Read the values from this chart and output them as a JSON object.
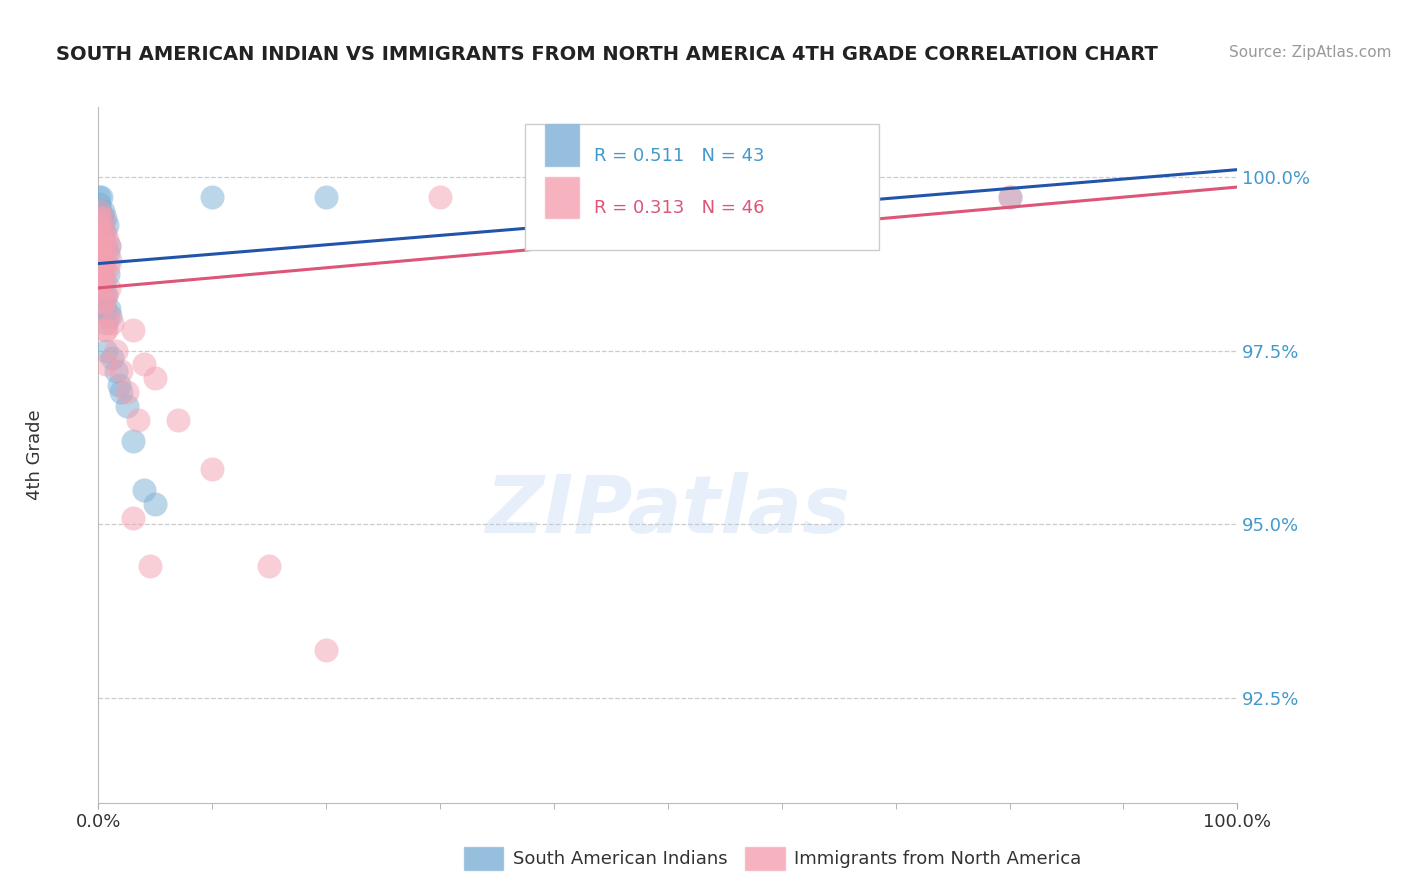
{
  "title": "SOUTH AMERICAN INDIAN VS IMMIGRANTS FROM NORTH AMERICA 4TH GRADE CORRELATION CHART",
  "source_text": "Source: ZipAtlas.com",
  "ylabel": "4th Grade",
  "blue_R": 0.511,
  "blue_N": 43,
  "pink_R": 0.313,
  "pink_N": 46,
  "blue_color": "#7BAFD4",
  "pink_color": "#F4A0B0",
  "blue_line_color": "#2255AA",
  "pink_line_color": "#DD5577",
  "legend_label_blue": "South American Indians",
  "legend_label_pink": "Immigrants from North America",
  "blue_scatter": [
    [
      0.05,
      99.7
    ],
    [
      0.08,
      99.6
    ],
    [
      0.1,
      99.5
    ],
    [
      0.12,
      99.4
    ],
    [
      0.15,
      99.3
    ],
    [
      0.18,
      99.2
    ],
    [
      0.2,
      99.1
    ],
    [
      0.22,
      99.0
    ],
    [
      0.25,
      99.7
    ],
    [
      0.28,
      99.4
    ],
    [
      0.3,
      99.3
    ],
    [
      0.32,
      99.1
    ],
    [
      0.35,
      98.9
    ],
    [
      0.38,
      98.8
    ],
    [
      0.4,
      98.7
    ],
    [
      0.42,
      99.5
    ],
    [
      0.45,
      99.2
    ],
    [
      0.48,
      98.5
    ],
    [
      0.5,
      98.3
    ],
    [
      0.55,
      98.1
    ],
    [
      0.58,
      99.4
    ],
    [
      0.6,
      99.0
    ],
    [
      0.65,
      98.3
    ],
    [
      0.68,
      97.9
    ],
    [
      0.7,
      97.5
    ],
    [
      0.75,
      99.3
    ],
    [
      0.8,
      98.6
    ],
    [
      0.85,
      98.9
    ],
    [
      0.9,
      99.0
    ],
    [
      0.95,
      98.1
    ],
    [
      1.0,
      98.0
    ],
    [
      1.2,
      97.4
    ],
    [
      1.5,
      97.2
    ],
    [
      1.8,
      97.0
    ],
    [
      2.0,
      96.9
    ],
    [
      2.5,
      96.7
    ],
    [
      3.0,
      96.2
    ],
    [
      4.0,
      95.5
    ],
    [
      5.0,
      95.3
    ],
    [
      10.0,
      99.7
    ],
    [
      20.0,
      99.7
    ],
    [
      40.0,
      99.7
    ],
    [
      80.0,
      99.7
    ]
  ],
  "pink_scatter": [
    [
      0.05,
      99.5
    ],
    [
      0.08,
      99.4
    ],
    [
      0.1,
      99.2
    ],
    [
      0.12,
      99.0
    ],
    [
      0.15,
      98.8
    ],
    [
      0.18,
      98.6
    ],
    [
      0.2,
      98.5
    ],
    [
      0.25,
      99.3
    ],
    [
      0.28,
      99.1
    ],
    [
      0.3,
      98.9
    ],
    [
      0.32,
      98.7
    ],
    [
      0.35,
      98.5
    ],
    [
      0.38,
      98.2
    ],
    [
      0.4,
      99.4
    ],
    [
      0.45,
      99.0
    ],
    [
      0.48,
      98.6
    ],
    [
      0.5,
      98.2
    ],
    [
      0.55,
      97.8
    ],
    [
      0.58,
      99.2
    ],
    [
      0.6,
      98.8
    ],
    [
      0.65,
      98.3
    ],
    [
      0.68,
      97.8
    ],
    [
      0.7,
      97.3
    ],
    [
      0.75,
      99.1
    ],
    [
      0.8,
      98.7
    ],
    [
      0.85,
      98.0
    ],
    [
      0.9,
      99.0
    ],
    [
      0.95,
      98.4
    ],
    [
      1.0,
      98.8
    ],
    [
      1.2,
      97.9
    ],
    [
      1.5,
      97.5
    ],
    [
      2.0,
      97.2
    ],
    [
      2.5,
      96.9
    ],
    [
      3.0,
      97.8
    ],
    [
      3.5,
      96.5
    ],
    [
      4.0,
      97.3
    ],
    [
      5.0,
      97.1
    ],
    [
      7.0,
      96.5
    ],
    [
      10.0,
      95.8
    ],
    [
      15.0,
      94.4
    ],
    [
      20.0,
      93.2
    ],
    [
      3.0,
      95.1
    ],
    [
      4.5,
      94.4
    ],
    [
      30.0,
      99.7
    ],
    [
      50.0,
      99.7
    ],
    [
      80.0,
      99.7
    ]
  ],
  "watermark_text": "ZIPatlas",
  "background_color": "#FFFFFF",
  "grid_color": "#CCCCCC",
  "ymin": 91.0,
  "ymax": 101.0,
  "xmin": 0.0,
  "xmax": 100.0
}
